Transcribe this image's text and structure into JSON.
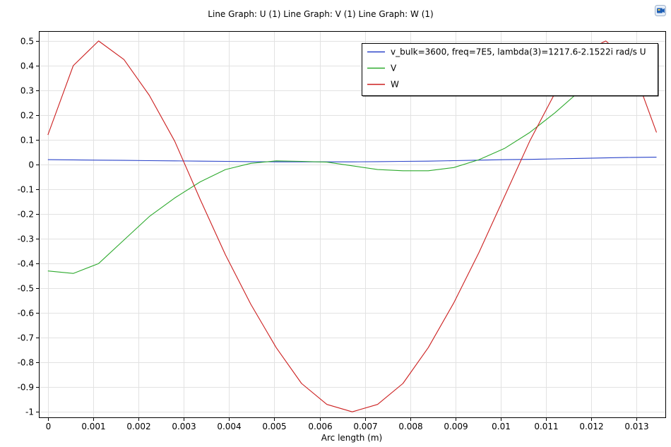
{
  "chart_data": {
    "type": "line",
    "title": "Line Graph: U (1)  Line Graph: V (1)  Line Graph: W (1)",
    "xlabel": "Arc length (m)",
    "ylabel": "",
    "xlim": [
      -0.0002,
      0.01365
    ],
    "ylim": [
      -1.025,
      0.54
    ],
    "xticks": [
      0,
      0.001,
      0.002,
      0.003,
      0.004,
      0.005,
      0.006,
      0.007,
      0.008,
      0.009,
      0.01,
      0.011,
      0.012,
      0.013
    ],
    "xtick_labels": [
      "0",
      "0.001",
      "0.002",
      "0.003",
      "0.004",
      "0.005",
      "0.006",
      "0.007",
      "0.008",
      "0.009",
      "0.01",
      "0.011",
      "0.012",
      "0.013"
    ],
    "yticks": [
      0.5,
      0.4,
      0.3,
      0.2,
      0.1,
      0,
      -0.1,
      -0.2,
      -0.3,
      -0.4,
      -0.5,
      -0.6,
      -0.7,
      -0.8,
      -0.9,
      -1
    ],
    "ytick_labels": [
      "0.5",
      "0.4",
      "0.3",
      "0.2",
      "0.1",
      "0",
      "-0.1",
      "-0.2",
      "-0.3",
      "-0.4",
      "-0.5",
      "-0.6",
      "-0.7",
      "-0.8",
      "-0.9",
      "-1"
    ],
    "grid": true,
    "legend_position": "top-right",
    "x": [
      0,
      0.00056,
      0.00112,
      0.00168,
      0.00224,
      0.0028,
      0.00336,
      0.00392,
      0.00448,
      0.00504,
      0.0056,
      0.00616,
      0.00672,
      0.00728,
      0.00784,
      0.0084,
      0.00896,
      0.00952,
      0.01008,
      0.01064,
      0.0112,
      0.01176,
      0.01232,
      0.01288,
      0.01344
    ],
    "series": [
      {
        "name": "v_bulk=3600, freq=7E5, lambda(3)=1217.6-2.1522i rad/s U",
        "color": "#2a43c9",
        "values": [
          0.02,
          0.019,
          0.018,
          0.017,
          0.016,
          0.015,
          0.014,
          0.013,
          0.012,
          0.011,
          0.011,
          0.011,
          0.011,
          0.012,
          0.013,
          0.014,
          0.016,
          0.018,
          0.02,
          0.021,
          0.023,
          0.025,
          0.027,
          0.029,
          0.03
        ]
      },
      {
        "name": "V",
        "color": "#2eaa2e",
        "values": [
          -0.43,
          -0.44,
          -0.4,
          -0.305,
          -0.21,
          -0.135,
          -0.07,
          -0.02,
          0.005,
          0.015,
          0.013,
          0.01,
          -0.005,
          -0.02,
          -0.025,
          -0.025,
          -0.012,
          0.02,
          0.065,
          0.13,
          0.21,
          0.3,
          0.41,
          0.47,
          0.45
        ]
      },
      {
        "name": "W",
        "color": "#cc1f1f",
        "values": [
          0.12,
          0.4,
          0.5,
          0.425,
          0.28,
          0.095,
          -0.14,
          -0.365,
          -0.565,
          -0.74,
          -0.885,
          -0.97,
          -1.0,
          -0.97,
          -0.885,
          -0.74,
          -0.56,
          -0.355,
          -0.13,
          0.095,
          0.29,
          0.45,
          0.5,
          0.41,
          0.13
        ]
      }
    ]
  },
  "icons": {
    "corner": "camera-icon"
  }
}
